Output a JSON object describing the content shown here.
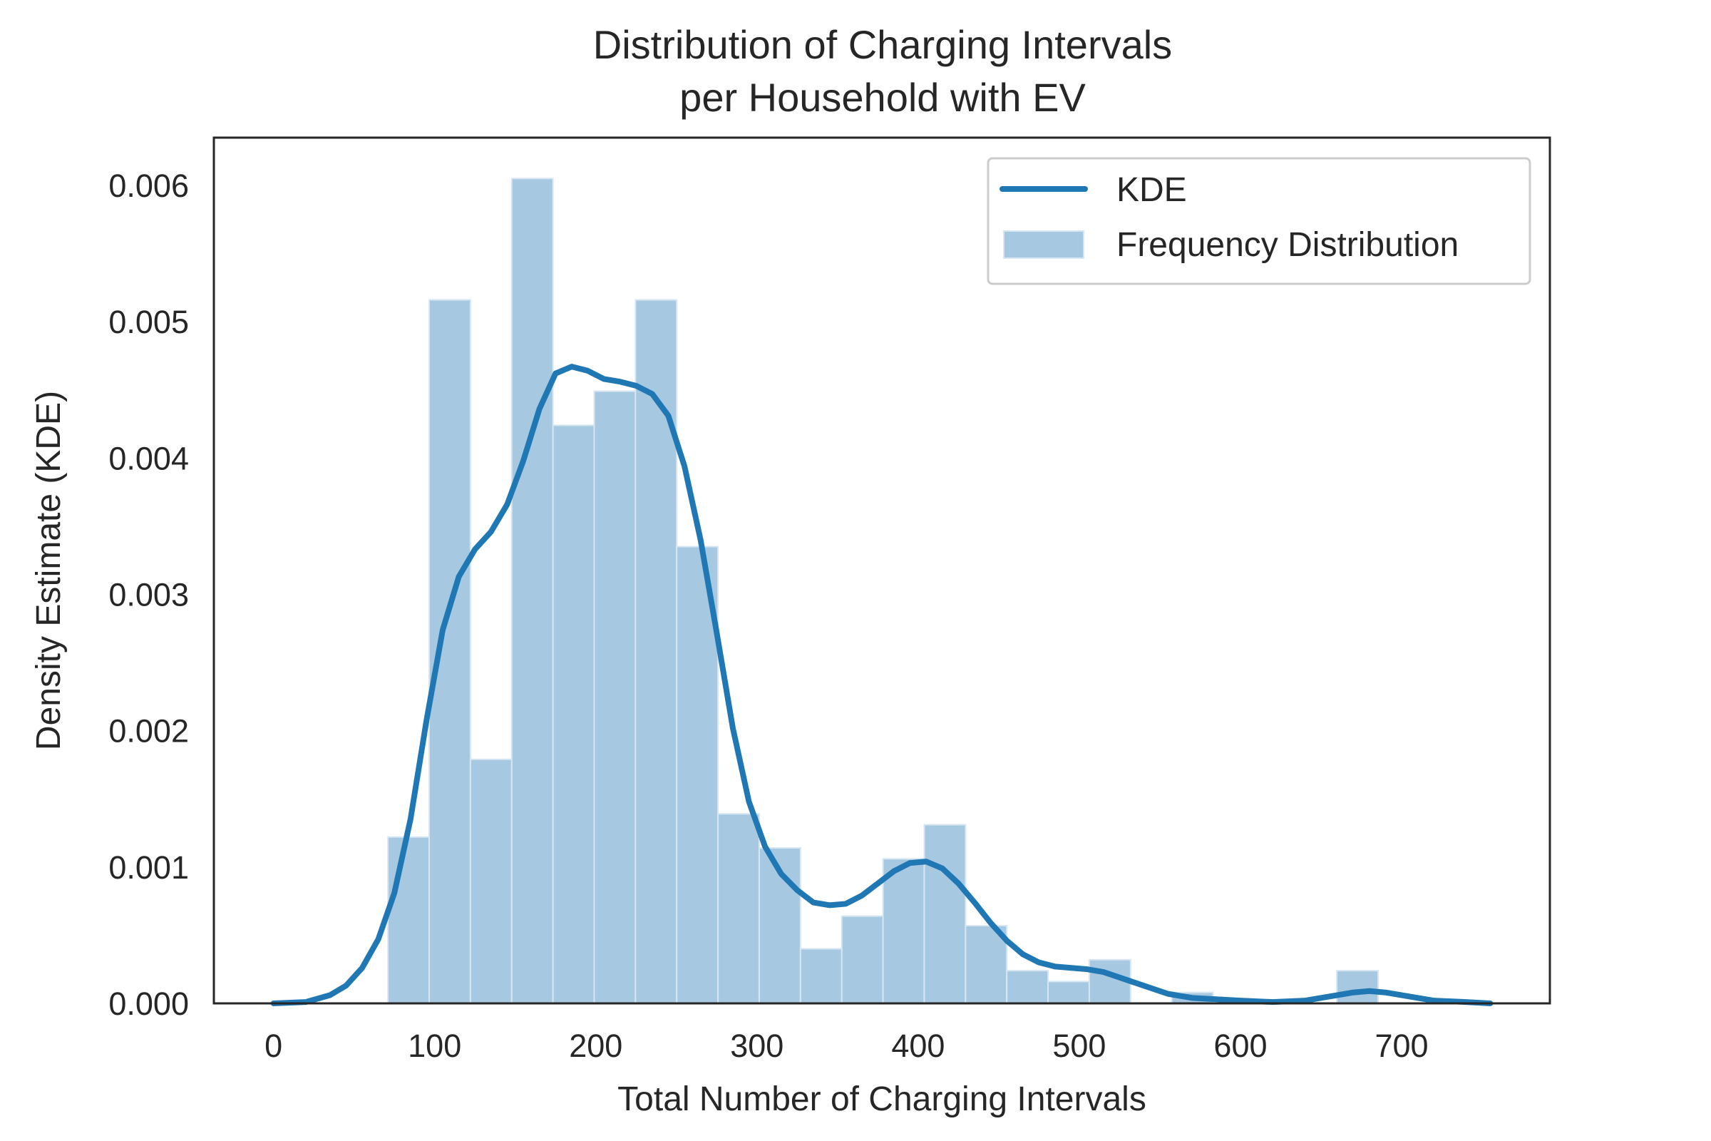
{
  "chart_data": {
    "type": "bar",
    "title_line1": "Distribution of Charging Intervals",
    "title_line2": "per Household with EV",
    "xlabel": "Total Number of Charging Intervals",
    "ylabel": "Density Estimate (KDE)",
    "xlim": [
      -37,
      792
    ],
    "ylim": [
      0,
      0.00635
    ],
    "x_ticks": [
      0,
      100,
      200,
      300,
      400,
      500,
      600,
      700
    ],
    "x_tick_labels": [
      "0",
      "100",
      "200",
      "300",
      "400",
      "500",
      "600",
      "700"
    ],
    "y_ticks": [
      0.0,
      0.001,
      0.002,
      0.003,
      0.004,
      0.005,
      0.006
    ],
    "y_tick_labels": [
      "0.000",
      "0.001",
      "0.002",
      "0.003",
      "0.004",
      "0.005",
      "0.006"
    ],
    "grid": false,
    "legend_position": "top-right",
    "legend": [
      {
        "label": "KDE",
        "kind": "line"
      },
      {
        "label": "Frequency Distribution",
        "kind": "patch"
      }
    ],
    "colors": {
      "kde": "#1f77b4",
      "bars": "#a6c8e0",
      "bar_edge": "#d6e6f2",
      "axes": "#262626"
    },
    "histogram": {
      "bin_edges": [
        71,
        96.6,
        122.2,
        147.8,
        173.4,
        199,
        224.6,
        250.2,
        275.8,
        301.4,
        327,
        352.6,
        378.2,
        403.8,
        429.4,
        455,
        480.6,
        506.2,
        531.8,
        557.4,
        583,
        608.6,
        634.2,
        659.8,
        685.4
      ],
      "values": [
        0.00122,
        0.00516,
        0.00179,
        0.00605,
        0.00424,
        0.00449,
        0.00516,
        0.00335,
        0.00139,
        0.00114,
        0.0004,
        0.00064,
        0.00106,
        0.00131,
        0.00057,
        0.00024,
        0.00016,
        0.00032,
        0.0,
        8e-05,
        0.0,
        0.0,
        0.0,
        0.00024
      ]
    },
    "series": [
      {
        "name": "KDE",
        "x": [
          0,
          20,
          35,
          45,
          55,
          65,
          75,
          85,
          95,
          105,
          115,
          125,
          135,
          145,
          155,
          165,
          175,
          185,
          195,
          205,
          215,
          225,
          235,
          245,
          255,
          265,
          275,
          285,
          295,
          305,
          315,
          325,
          335,
          345,
          355,
          365,
          375,
          385,
          395,
          405,
          415,
          425,
          435,
          445,
          455,
          465,
          475,
          485,
          495,
          505,
          515,
          525,
          540,
          555,
          570,
          585,
          600,
          620,
          640,
          655,
          670,
          680,
          690,
          705,
          720,
          740,
          755
        ],
        "y": [
          0.0,
          1e-05,
          6e-05,
          0.00013,
          0.00026,
          0.00047,
          0.00081,
          0.00135,
          0.00208,
          0.00274,
          0.00313,
          0.00333,
          0.00346,
          0.00366,
          0.00398,
          0.00436,
          0.00462,
          0.00467,
          0.00464,
          0.00458,
          0.00456,
          0.00453,
          0.00447,
          0.00431,
          0.00394,
          0.0034,
          0.00272,
          0.00202,
          0.00148,
          0.00115,
          0.00095,
          0.00083,
          0.00074,
          0.00072,
          0.00073,
          0.00079,
          0.00088,
          0.00097,
          0.00103,
          0.00104,
          0.00099,
          0.00088,
          0.00074,
          0.00059,
          0.00046,
          0.00036,
          0.0003,
          0.00027,
          0.00026,
          0.00025,
          0.00023,
          0.00019,
          0.00013,
          7e-05,
          4e-05,
          3e-05,
          2e-05,
          1e-05,
          2e-05,
          5e-05,
          8e-05,
          9e-05,
          8e-05,
          5e-05,
          2e-05,
          1e-05,
          0.0
        ]
      }
    ]
  }
}
